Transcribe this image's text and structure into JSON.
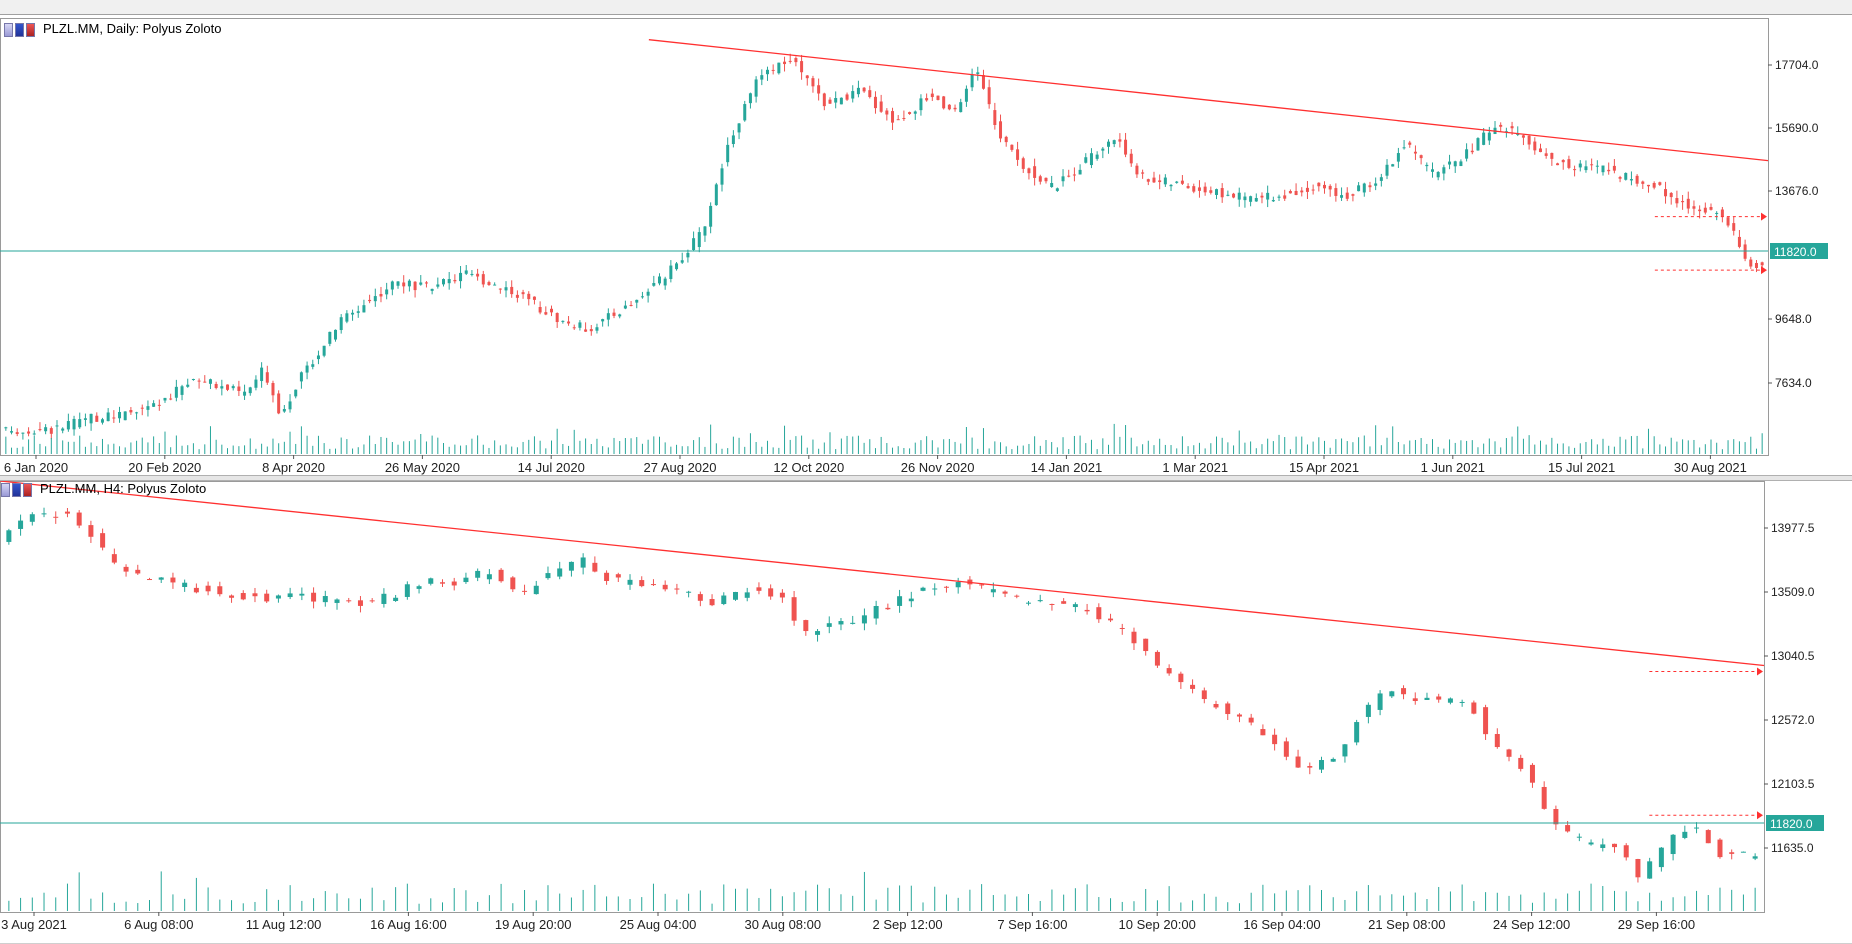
{
  "colors": {
    "bull": "#26a69a",
    "bear": "#ef5350",
    "trendline": "#ff3030",
    "priceline": "#26a69a",
    "label_bg": "#26a69a"
  },
  "chart_data": [
    {
      "type": "candlestick",
      "title": "PLZL.MM, Daily:  Polyus Zoloto",
      "y_ticks": [
        "17704.0",
        "15690.0",
        "13676.0",
        "9648.0",
        "7634.0"
      ],
      "ylim": [
        6800,
        18900
      ],
      "x_ticks": [
        "6 Jan 2020",
        "20 Feb 2020",
        "8 Apr 2020",
        "26 May 2020",
        "14 Jul 2020",
        "27 Aug 2020",
        "12 Oct 2020",
        "26 Nov 2020",
        "14 Jan 2021",
        "1 Mar 2021",
        "15 Apr 2021",
        "1 Jun 2021",
        "15 Jul 2021",
        "30 Aug 2021"
      ],
      "current_price": "11820.0",
      "trendline": [
        [
          0.367,
          18300
        ],
        [
          1.0,
          14950
        ]
      ],
      "levels": [
        {
          "from": 0.936,
          "value": 13400
        },
        {
          "from": 0.936,
          "value": 11920
        }
      ],
      "path": [
        [
          0,
          7450
        ],
        [
          0.03,
          7500
        ],
        [
          0.05,
          7800
        ],
        [
          0.07,
          7900
        ],
        [
          0.09,
          8200
        ],
        [
          0.11,
          8900
        ],
        [
          0.125,
          8700
        ],
        [
          0.14,
          8500
        ],
        [
          0.15,
          9200
        ],
        [
          0.16,
          7900
        ],
        [
          0.17,
          8900
        ],
        [
          0.195,
          10600
        ],
        [
          0.205,
          10900
        ],
        [
          0.225,
          11600
        ],
        [
          0.245,
          11400
        ],
        [
          0.265,
          11800
        ],
        [
          0.29,
          11400
        ],
        [
          0.32,
          10500
        ],
        [
          0.335,
          10300
        ],
        [
          0.36,
          11000
        ],
        [
          0.38,
          11800
        ],
        [
          0.4,
          13000
        ],
        [
          0.415,
          15500
        ],
        [
          0.43,
          17100
        ],
        [
          0.45,
          17800
        ],
        [
          0.47,
          16500
        ],
        [
          0.49,
          16900
        ],
        [
          0.51,
          16000
        ],
        [
          0.53,
          16800
        ],
        [
          0.545,
          16200
        ],
        [
          0.555,
          17600
        ],
        [
          0.57,
          15500
        ],
        [
          0.585,
          14700
        ],
        [
          0.6,
          14200
        ],
        [
          0.62,
          15000
        ],
        [
          0.635,
          15600
        ],
        [
          0.65,
          14500
        ],
        [
          0.67,
          14300
        ],
        [
          0.7,
          14000
        ],
        [
          0.715,
          13900
        ],
        [
          0.735,
          14000
        ],
        [
          0.75,
          14300
        ],
        [
          0.765,
          13900
        ],
        [
          0.785,
          14500
        ],
        [
          0.8,
          15400
        ],
        [
          0.815,
          14600
        ],
        [
          0.83,
          14900
        ],
        [
          0.85,
          15900
        ],
        [
          0.865,
          15700
        ],
        [
          0.885,
          14900
        ],
        [
          0.9,
          14800
        ],
        [
          0.915,
          14700
        ],
        [
          0.93,
          14400
        ],
        [
          0.945,
          14200
        ],
        [
          0.96,
          13700
        ],
        [
          0.975,
          13600
        ],
        [
          0.985,
          13100
        ],
        [
          0.995,
          12100
        ]
      ],
      "volume_level": 0.55
    },
    {
      "type": "candlestick",
      "title": "PLZL.MM, H4:  Polyus Zoloto",
      "y_ticks": [
        "13977.5",
        "13509.0",
        "13040.5",
        "12572.0",
        "12103.5",
        "11635.0"
      ],
      "ylim": [
        11450,
        14300
      ],
      "x_ticks": [
        "3 Aug 2021",
        "6 Aug 08:00",
        "11 Aug 12:00",
        "16 Aug 16:00",
        "19 Aug 20:00",
        "25 Aug 04:00",
        "30 Aug 08:00",
        "2 Sep 12:00",
        "7 Sep 16:00",
        "10 Sep 20:00",
        "16 Sep 04:00",
        "21 Sep 08:00",
        "24 Sep 12:00",
        "29 Sep 16:00"
      ],
      "current_price": "11820.0",
      "trendline": [
        [
          0.0,
          14300
        ],
        [
          1.0,
          13080
        ]
      ],
      "levels": [
        {
          "from": 0.935,
          "value": 13040
        },
        {
          "from": 0.935,
          "value": 12090
        }
      ],
      "path": [
        [
          0,
          13900
        ],
        [
          0.015,
          14050
        ],
        [
          0.03,
          14100
        ],
        [
          0.045,
          14050
        ],
        [
          0.055,
          13920
        ],
        [
          0.07,
          13700
        ],
        [
          0.09,
          13650
        ],
        [
          0.11,
          13600
        ],
        [
          0.13,
          13560
        ],
        [
          0.15,
          13530
        ],
        [
          0.17,
          13540
        ],
        [
          0.19,
          13510
        ],
        [
          0.21,
          13500
        ],
        [
          0.225,
          13540
        ],
        [
          0.245,
          13640
        ],
        [
          0.26,
          13610
        ],
        [
          0.28,
          13700
        ],
        [
          0.3,
          13560
        ],
        [
          0.32,
          13720
        ],
        [
          0.335,
          13780
        ],
        [
          0.35,
          13650
        ],
        [
          0.37,
          13600
        ],
        [
          0.39,
          13560
        ],
        [
          0.41,
          13500
        ],
        [
          0.43,
          13580
        ],
        [
          0.45,
          13540
        ],
        [
          0.46,
          13300
        ],
        [
          0.475,
          13330
        ],
        [
          0.49,
          13380
        ],
        [
          0.51,
          13480
        ],
        [
          0.53,
          13580
        ],
        [
          0.55,
          13640
        ],
        [
          0.57,
          13560
        ],
        [
          0.59,
          13500
        ],
        [
          0.61,
          13470
        ],
        [
          0.625,
          13450
        ],
        [
          0.645,
          13300
        ],
        [
          0.665,
          13080
        ],
        [
          0.69,
          12860
        ],
        [
          0.71,
          12750
        ],
        [
          0.73,
          12580
        ],
        [
          0.745,
          12400
        ],
        [
          0.765,
          12450
        ],
        [
          0.78,
          12750
        ],
        [
          0.795,
          12920
        ],
        [
          0.815,
          12850
        ],
        [
          0.83,
          12860
        ],
        [
          0.845,
          12790
        ],
        [
          0.86,
          12500
        ],
        [
          0.875,
          12380
        ],
        [
          0.89,
          12040
        ],
        [
          0.91,
          11890
        ],
        [
          0.925,
          11900
        ],
        [
          0.94,
          11690
        ],
        [
          0.955,
          11880
        ],
        [
          0.965,
          12010
        ],
        [
          0.975,
          11990
        ],
        [
          0.985,
          11830
        ],
        [
          0.995,
          11830
        ]
      ],
      "volume_level": 0.7
    }
  ]
}
